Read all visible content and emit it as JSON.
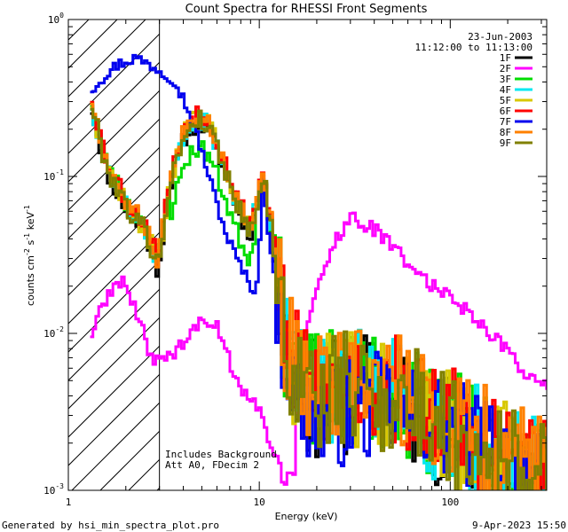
{
  "chart_data": {
    "type": "line",
    "title": "Count Spectra for RHESSI Front Segments",
    "xlabel": "Energy (keV)",
    "ylabel_parts": {
      "a": "counts cm",
      "b": "-2",
      "c": " s",
      "d": "-1",
      "e": " keV",
      "f": "-1"
    },
    "x_scale": "log",
    "y_scale": "log",
    "xlim": [
      1,
      320
    ],
    "ylim": [
      0.001,
      1
    ],
    "x_ticks": [
      {
        "v": 1,
        "label": "1"
      },
      {
        "v": 10,
        "label": "10"
      },
      {
        "v": 100,
        "label": "100"
      }
    ],
    "y_ticks": [
      {
        "v": 1,
        "base": "10",
        "exp": "0"
      },
      {
        "v": 0.1,
        "base": "10",
        "exp": "-1"
      },
      {
        "v": 0.01,
        "base": "10",
        "exp": "-2"
      },
      {
        "v": 0.001,
        "base": "10",
        "exp": "-3"
      }
    ],
    "attenuator_region_keV": 3,
    "date": "23-Jun-2003",
    "time_range": "11:12:00 to 11:13:00",
    "annotations": [
      "Includes Background",
      "Att A0, FDecim 2"
    ],
    "series": [
      {
        "name": "1F",
        "color": "#000000",
        "seed": 11,
        "scale": 0.85
      },
      {
        "name": "2F",
        "color": "#ff00ff",
        "type": "magenta"
      },
      {
        "name": "3F",
        "color": "#00dd00",
        "seed": 23,
        "scale": 0.95,
        "peak_factor": 0.62
      },
      {
        "name": "4F",
        "color": "#00e8f0",
        "seed": 31,
        "scale": 0.9
      },
      {
        "name": "5F",
        "color": "#d8c800",
        "seed": 47,
        "scale": 0.92
      },
      {
        "name": "6F",
        "color": "#ff0000",
        "seed": 53,
        "scale": 1.0
      },
      {
        "name": "7F",
        "color": "#0000ee",
        "type": "blue"
      },
      {
        "name": "8F",
        "color": "#ff8000",
        "seed": 67,
        "scale": 0.97
      },
      {
        "name": "9F",
        "color": "#808000",
        "seed": 79,
        "scale": 0.9
      }
    ]
  },
  "footer": {
    "left": "Generated by hsi_min_spectra_plot.pro",
    "right": "9-Apr-2023 15:50"
  }
}
